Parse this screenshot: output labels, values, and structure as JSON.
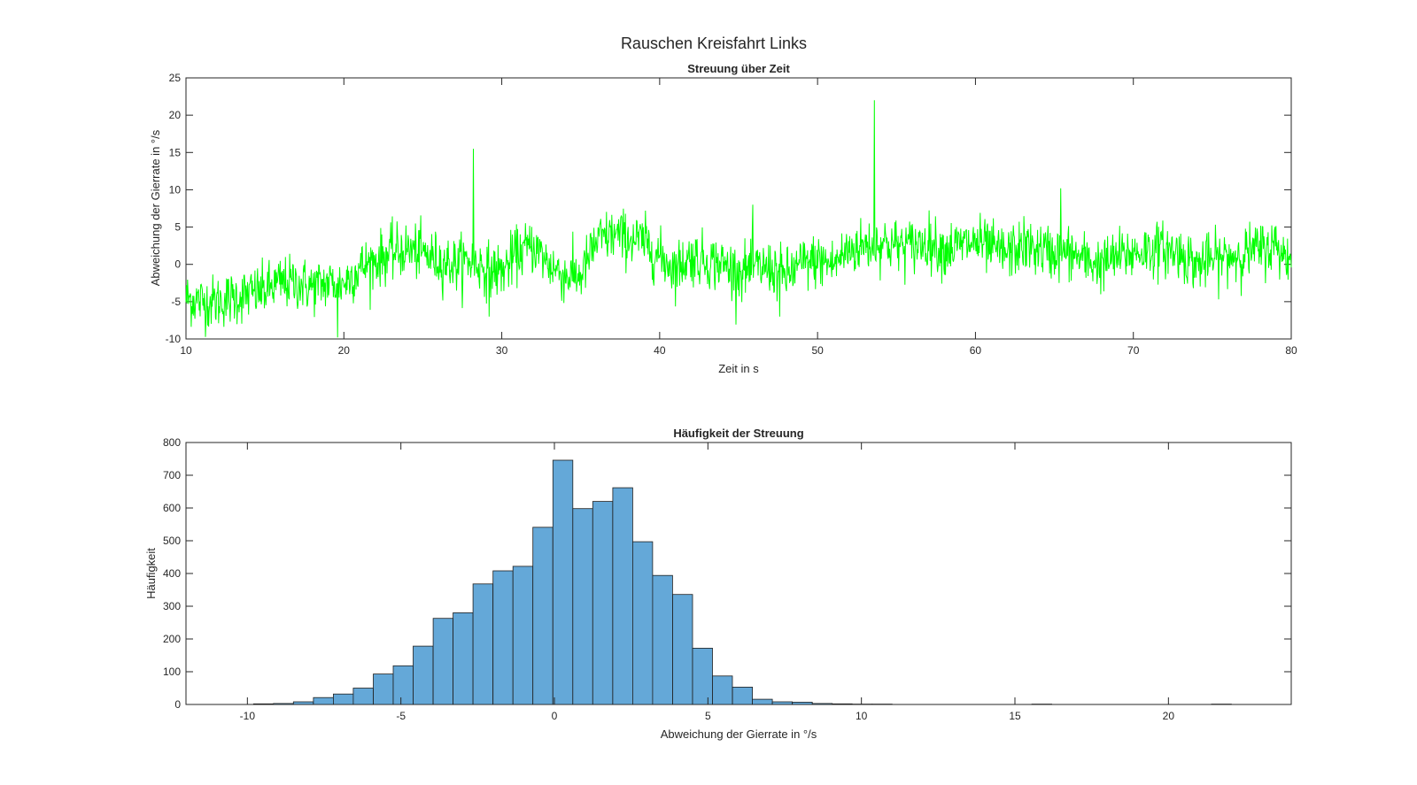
{
  "figure": {
    "title": "Rauschen Kreisfahrt Links"
  },
  "colors": {
    "line": "#00ff00",
    "bar_fill": "#64a8d8",
    "bar_edge": "#1f1f1f",
    "axis": "#262626"
  },
  "chart_data": [
    {
      "type": "line",
      "title": "Streuung über Zeit",
      "xlabel": "Zeit in s",
      "ylabel": "Abweichung der Gierrate in °/s",
      "xlim": [
        10,
        80
      ],
      "ylim": [
        -10,
        25
      ],
      "xticks": [
        10,
        20,
        30,
        40,
        50,
        60,
        70,
        80
      ],
      "yticks": [
        -10,
        -5,
        0,
        5,
        10,
        15,
        20,
        25
      ],
      "series": [
        {
          "name": "Abweichung",
          "x": [
            10,
            11,
            12,
            13,
            14,
            15,
            16,
            17,
            18,
            19,
            20,
            21,
            22,
            23,
            24,
            25,
            26,
            27,
            28,
            29,
            30,
            31,
            32,
            33,
            34,
            35,
            36,
            37,
            38,
            39,
            40,
            41,
            42,
            43,
            44,
            45,
            46,
            47,
            48,
            49,
            50,
            51,
            52,
            53,
            54,
            55,
            56,
            57,
            58,
            59,
            60,
            61,
            62,
            63,
            64,
            65,
            66,
            67,
            68,
            69,
            70,
            71,
            72,
            73,
            74,
            75,
            76,
            77,
            78,
            79,
            80
          ],
          "trend": [
            -4.5,
            -5,
            -5,
            -4.5,
            -4,
            -3.5,
            -2.5,
            -2.5,
            -3,
            -2.5,
            -2.5,
            -0.5,
            0.5,
            1.5,
            2,
            1.5,
            0.5,
            0,
            0.5,
            -0.5,
            -1,
            1.5,
            2.5,
            0,
            -1.5,
            -1.5,
            3,
            4,
            3.5,
            3,
            1,
            -0.5,
            1,
            0.5,
            0,
            -1,
            -0.5,
            -0.5,
            -1.5,
            0,
            0.5,
            0,
            2,
            2.5,
            3,
            2.5,
            2.5,
            3,
            2,
            2.5,
            3,
            2,
            1.5,
            2.5,
            2,
            1.5,
            1.5,
            0.5,
            0,
            1,
            1.5,
            2,
            2,
            1.5,
            0,
            0.5,
            1,
            1.5,
            2,
            2.5,
            0.5
          ],
          "spikes": [
            [
              28.2,
              15.5
            ],
            [
              53.6,
              22
            ],
            [
              65.4,
              10.2
            ],
            [
              45.9,
              8
            ],
            [
              19.6,
              -9.8
            ],
            [
              29.2,
              -7
            ],
            [
              47.6,
              -7
            ]
          ]
        }
      ]
    },
    {
      "type": "histogram",
      "title": "Häufigkeit der Streuung",
      "xlabel": "Abweichung der Gierrate in °/s",
      "ylabel": "Häufigkeit",
      "xlim": [
        -12,
        24
      ],
      "ylim": [
        0,
        800
      ],
      "xticks": [
        -10,
        -5,
        0,
        5,
        10,
        15,
        20
      ],
      "yticks": [
        0,
        100,
        200,
        300,
        400,
        500,
        600,
        700,
        800
      ],
      "bin_width": 0.65,
      "bins": [
        [
          -9.8,
          2
        ],
        [
          -9.15,
          3
        ],
        [
          -8.5,
          8
        ],
        [
          -7.85,
          21
        ],
        [
          -7.2,
          32
        ],
        [
          -6.55,
          50
        ],
        [
          -5.9,
          93
        ],
        [
          -5.25,
          118
        ],
        [
          -4.6,
          178
        ],
        [
          -3.95,
          263
        ],
        [
          -3.3,
          280
        ],
        [
          -2.65,
          368
        ],
        [
          -2.0,
          408
        ],
        [
          -1.35,
          422
        ],
        [
          -0.7,
          541
        ],
        [
          -0.05,
          746
        ],
        [
          0.6,
          598
        ],
        [
          1.25,
          620
        ],
        [
          1.9,
          662
        ],
        [
          2.55,
          497
        ],
        [
          3.2,
          394
        ],
        [
          3.85,
          336
        ],
        [
          4.5,
          172
        ],
        [
          5.15,
          87
        ],
        [
          5.8,
          53
        ],
        [
          6.45,
          16
        ],
        [
          7.1,
          8
        ],
        [
          7.75,
          7
        ],
        [
          8.4,
          3
        ],
        [
          9.05,
          2
        ],
        [
          9.7,
          1
        ],
        [
          10.35,
          1
        ],
        [
          15.55,
          1
        ],
        [
          21.4,
          1
        ]
      ]
    }
  ]
}
